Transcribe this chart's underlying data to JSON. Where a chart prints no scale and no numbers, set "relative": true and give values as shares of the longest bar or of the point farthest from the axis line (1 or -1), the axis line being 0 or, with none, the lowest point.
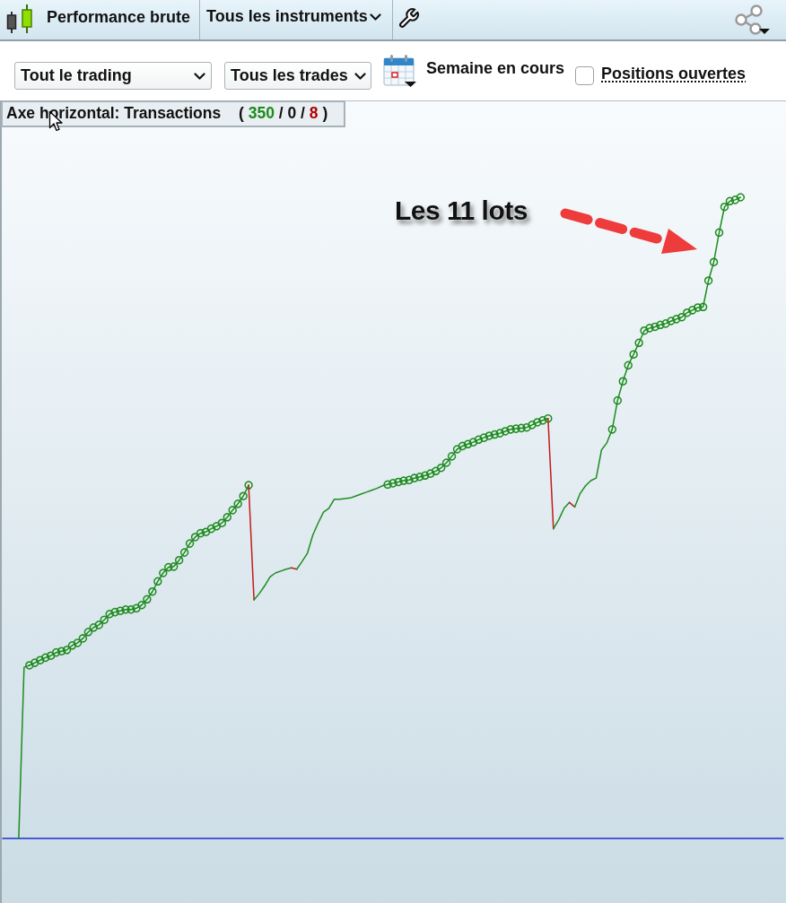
{
  "chart_data": {
    "type": "line",
    "title": "Performance brute",
    "annotations": [
      "Tous les instruments",
      "Tout le trading",
      "Tous les trades",
      "Semaine en cours",
      "Positions ouvertes",
      "Axe horizontal: Transactions",
      "( 350 / 0 / 8 )",
      "Les 11 lots"
    ],
    "relative": true,
    "marker": "none",
    "categories": [
      null,
      null,
      null,
      null,
      null,
      null,
      null,
      null,
      null,
      null,
      null,
      null,
      null,
      null,
      null,
      null,
      null,
      null,
      null,
      null,
      null,
      null,
      null,
      null,
      null,
      null,
      null,
      null,
      null,
      null,
      null,
      null,
      null,
      null,
      null,
      null,
      null,
      null,
      null,
      null,
      null,
      null,
      null,
      null,
      null,
      null,
      null,
      null,
      null,
      null,
      null,
      null,
      null,
      null,
      null,
      null,
      null,
      null,
      null,
      null,
      null,
      null,
      null,
      null,
      null,
      null,
      null,
      null,
      null,
      null,
      null,
      null,
      null,
      null,
      null,
      null,
      null,
      null,
      null,
      null,
      null,
      null,
      null,
      null,
      null,
      null,
      null,
      null,
      null,
      null,
      null,
      null,
      null,
      null,
      null,
      null,
      null,
      null,
      null,
      null,
      null,
      null,
      null,
      null,
      null,
      null,
      null,
      null,
      null,
      null,
      null,
      null,
      null,
      null,
      null,
      null,
      null,
      null,
      null,
      null,
      null,
      null,
      null,
      null,
      null,
      null,
      null,
      null,
      null,
      null,
      null,
      null,
      null,
      null,
      null,
      null,
      null,
      null,
      null,
      null,
      null,
      null,
      null,
      null,
      null,
      null,
      null
    ],
    "series": [
      {
        "color": "#1e8c1e",
        "values": [
          null,
          null,
          null,
          0,
          0.267,
          0.27,
          null,
          null,
          null,
          null,
          null,
          null,
          null,
          null,
          null,
          null,
          null,
          null,
          null,
          null,
          null,
          null,
          null,
          null,
          null,
          null,
          null,
          null,
          null,
          null,
          null,
          null,
          null,
          null,
          null,
          null,
          null,
          null,
          null,
          null,
          null,
          null,
          null,
          null,
          null,
          null,
          null,
          null,
          null,
          null,
          null,
          null,
          null,
          null,
          null,
          null,
          null,
          null,
          null,
          null,
          null,
          null,
          null,
          null,
          null,
          null,
          null,
          null,
          null,
          null,
          null,
          null,
          null,
          null,
          null,
          null,
          null,
          null,
          null,
          null,
          null,
          null,
          null,
          null,
          null,
          null,
          null,
          null,
          null,
          null,
          null,
          null,
          null,
          null,
          null,
          null,
          null,
          null,
          null,
          null,
          null,
          null,
          null,
          null,
          null,
          null,
          null,
          null,
          null,
          null,
          null,
          null,
          null,
          null,
          null,
          null,
          null,
          null,
          null,
          null,
          null,
          null,
          null,
          null,
          null,
          null,
          null,
          null,
          null,
          null,
          null,
          null,
          null,
          null,
          null,
          null,
          null,
          null,
          null,
          null,
          null,
          null,
          null,
          null,
          null,
          null,
          null
        ]
      },
      {
        "color": "#1e8c1e",
        "marker": "circle",
        "values": [
          null,
          null,
          null,
          null,
          null,
          0.27,
          0.274,
          0.278,
          0.282,
          0.285,
          0.29,
          0.292,
          0.294,
          0.301,
          0.305,
          0.312,
          0.322,
          0.329,
          0.333,
          0.341,
          0.35,
          0.353,
          0.355,
          0.357,
          0.357,
          0.359,
          0.364,
          0.373,
          0.385,
          0.401,
          0.414,
          0.423,
          0.424,
          0.434,
          0.446,
          0.46,
          0.47,
          0.476,
          0.478,
          0.483,
          0.487,
          0.492,
          0.501,
          0.512,
          0.522,
          0.534,
          0.551,
          null,
          null,
          null,
          null,
          null,
          null,
          null,
          null,
          null,
          null,
          null,
          null,
          null,
          null,
          null,
          null,
          null,
          null,
          null,
          null,
          null,
          null,
          null,
          null,
          null,
          null,
          null,
          null,
          null,
          null,
          null,
          null,
          null,
          null,
          null,
          null,
          null,
          null,
          null,
          null,
          null,
          null,
          null,
          null,
          null,
          null,
          null,
          null,
          null,
          null,
          null,
          null,
          null,
          null,
          null,
          null,
          null,
          null,
          null,
          null,
          null,
          null,
          null,
          null,
          null,
          null,
          null,
          null,
          null,
          null,
          null,
          null,
          null,
          null,
          null,
          null,
          null,
          null,
          null,
          null,
          null,
          null,
          null,
          null,
          null,
          null,
          null,
          null,
          null,
          null,
          null,
          null,
          null,
          null,
          null,
          null,
          null,
          null,
          null,
          null
        ]
      },
      {
        "color": "#c41a1a",
        "values": [
          null,
          null,
          null,
          null,
          null,
          null,
          null,
          null,
          null,
          null,
          null,
          null,
          null,
          null,
          null,
          null,
          null,
          null,
          null,
          null,
          null,
          null,
          null,
          null,
          null,
          null,
          null,
          null,
          null,
          null,
          null,
          null,
          null,
          null,
          null,
          null,
          null,
          null,
          null,
          null,
          null,
          null,
          null,
          null,
          null,
          null,
          0.551,
          0.372,
          null,
          null,
          null,
          null,
          null,
          null,
          null,
          null,
          null,
          null,
          null,
          null,
          null,
          null,
          null,
          null,
          null,
          null,
          null,
          null,
          null,
          null,
          null,
          null,
          null,
          null,
          null,
          null,
          null,
          null,
          null,
          null,
          null,
          null,
          null,
          null,
          null,
          null,
          null,
          null,
          null,
          null,
          null,
          null,
          null,
          null,
          null,
          null,
          null,
          null,
          null,
          null,
          null,
          null,
          null,
          null,
          null,
          null,
          null,
          null,
          null,
          null,
          null,
          null,
          null,
          null,
          null,
          null,
          null,
          null,
          null,
          null,
          null,
          null,
          null,
          null,
          null,
          null,
          null,
          null,
          null,
          null,
          null,
          null,
          null,
          null,
          null,
          null,
          null,
          null,
          null,
          null,
          null,
          null,
          null,
          null,
          null,
          null,
          null
        ]
      },
      {
        "color": "#1e8c1e",
        "values": [
          null,
          null,
          null,
          null,
          null,
          null,
          null,
          null,
          null,
          null,
          null,
          null,
          null,
          null,
          null,
          null,
          null,
          null,
          null,
          null,
          null,
          null,
          null,
          null,
          null,
          null,
          null,
          null,
          null,
          null,
          null,
          null,
          null,
          null,
          null,
          null,
          null,
          null,
          null,
          null,
          null,
          null,
          null,
          null,
          null,
          null,
          null,
          0.372,
          0.382,
          0.394,
          0.408,
          0.414,
          0.417,
          0.42,
          0.422,
          null,
          null,
          null,
          null,
          null,
          null,
          null,
          null,
          null,
          null,
          null,
          null,
          null,
          null,
          null,
          null,
          null,
          null,
          null,
          null,
          null,
          null,
          null,
          null,
          null,
          null,
          null,
          null,
          null,
          null,
          null,
          null,
          null,
          null,
          null,
          null,
          null,
          null,
          null,
          null,
          null,
          null,
          null,
          null,
          null,
          null,
          null,
          null,
          null,
          null,
          null,
          null,
          null,
          null,
          null,
          null,
          null,
          null,
          null,
          null,
          null,
          null,
          null,
          null,
          null,
          null,
          null,
          null,
          null,
          null,
          null,
          null,
          null,
          null,
          null,
          null,
          null,
          null,
          null,
          null,
          null,
          null,
          null,
          null,
          null,
          null,
          null,
          null,
          null,
          null,
          null,
          null
        ]
      },
      {
        "color": "#c41a1a",
        "values": [
          null,
          null,
          null,
          null,
          null,
          null,
          null,
          null,
          null,
          null,
          null,
          null,
          null,
          null,
          null,
          null,
          null,
          null,
          null,
          null,
          null,
          null,
          null,
          null,
          null,
          null,
          null,
          null,
          null,
          null,
          null,
          null,
          null,
          null,
          null,
          null,
          null,
          null,
          null,
          null,
          null,
          null,
          null,
          null,
          null,
          null,
          null,
          null,
          null,
          null,
          null,
          null,
          null,
          null,
          0.422,
          0.42,
          null,
          null,
          null,
          null,
          null,
          null,
          null,
          null,
          null,
          null,
          null,
          null,
          null,
          null,
          null,
          null,
          null,
          null,
          null,
          null,
          null,
          null,
          null,
          null,
          null,
          null,
          null,
          null,
          null,
          null,
          null,
          null,
          null,
          null,
          null,
          null,
          null,
          null,
          null,
          null,
          null,
          null,
          null,
          null,
          null,
          null,
          null,
          null,
          null,
          null,
          null,
          null,
          null,
          null,
          null,
          null,
          null,
          null,
          null,
          null,
          null,
          null,
          null,
          null,
          null,
          null,
          null,
          null,
          null,
          null,
          null,
          null,
          null,
          null,
          null,
          null,
          null,
          null,
          null,
          null,
          null,
          null,
          null,
          null,
          null,
          null,
          null,
          null,
          null,
          null,
          null
        ]
      },
      {
        "color": "#1e8c1e",
        "values": [
          null,
          null,
          null,
          null,
          null,
          null,
          null,
          null,
          null,
          null,
          null,
          null,
          null,
          null,
          null,
          null,
          null,
          null,
          null,
          null,
          null,
          null,
          null,
          null,
          null,
          null,
          null,
          null,
          null,
          null,
          null,
          null,
          null,
          null,
          null,
          null,
          null,
          null,
          null,
          null,
          null,
          null,
          null,
          null,
          null,
          null,
          null,
          null,
          null,
          null,
          null,
          null,
          null,
          null,
          null,
          0.42,
          0.432,
          0.445,
          0.473,
          0.492,
          0.509,
          0.515,
          0.529,
          0.529,
          0.53,
          0.531,
          0.534,
          0.537,
          0.54,
          0.543,
          0.546,
          0.55,
          0.552,
          null,
          null,
          null,
          null,
          null,
          null,
          null,
          null,
          null,
          null,
          null,
          null,
          null,
          null,
          null,
          null,
          null,
          null,
          null,
          null,
          null,
          null,
          null,
          null,
          null,
          null,
          null,
          null,
          null,
          null,
          null,
          null,
          null,
          null,
          null,
          null,
          null,
          null,
          null,
          null,
          null,
          null,
          null,
          null,
          null,
          null,
          null,
          null,
          null,
          null,
          null,
          null,
          null,
          null,
          null,
          null,
          null,
          null,
          null,
          null,
          null,
          null,
          null,
          null,
          null,
          null,
          null,
          null,
          null,
          null,
          null,
          null,
          null,
          null
        ]
      },
      {
        "color": "#1e8c1e",
        "marker": "circle",
        "values": [
          null,
          null,
          null,
          null,
          null,
          null,
          null,
          null,
          null,
          null,
          null,
          null,
          null,
          null,
          null,
          null,
          null,
          null,
          null,
          null,
          null,
          null,
          null,
          null,
          null,
          null,
          null,
          null,
          null,
          null,
          null,
          null,
          null,
          null,
          null,
          null,
          null,
          null,
          null,
          null,
          null,
          null,
          null,
          null,
          null,
          null,
          null,
          null,
          null,
          null,
          null,
          null,
          null,
          null,
          null,
          null,
          null,
          null,
          null,
          null,
          null,
          null,
          null,
          null,
          null,
          null,
          null,
          null,
          null,
          null,
          null,
          null,
          0.552,
          0.554,
          0.556,
          0.558,
          0.559,
          0.562,
          0.564,
          0.566,
          0.569,
          0.573,
          0.578,
          0.586,
          0.596,
          0.607,
          0.612,
          0.615,
          0.618,
          0.622,
          0.625,
          0.628,
          0.63,
          0.632,
          0.635,
          0.638,
          0.639,
          0.64,
          0.641,
          0.645,
          0.649,
          0.652,
          0.655,
          null,
          null,
          null,
          null,
          null,
          null,
          null,
          null,
          null,
          null,
          null,
          null,
          null,
          null,
          null,
          null,
          null,
          null,
          null,
          null,
          null,
          null,
          null,
          null,
          null,
          null,
          null,
          null,
          null,
          null,
          null,
          null,
          null,
          null,
          null,
          null,
          null,
          null,
          null,
          null,
          null,
          null,
          null,
          null
        ]
      },
      {
        "color": "#c41a1a",
        "values": [
          null,
          null,
          null,
          null,
          null,
          null,
          null,
          null,
          null,
          null,
          null,
          null,
          null,
          null,
          null,
          null,
          null,
          null,
          null,
          null,
          null,
          null,
          null,
          null,
          null,
          null,
          null,
          null,
          null,
          null,
          null,
          null,
          null,
          null,
          null,
          null,
          null,
          null,
          null,
          null,
          null,
          null,
          null,
          null,
          null,
          null,
          null,
          null,
          null,
          null,
          null,
          null,
          null,
          null,
          null,
          null,
          null,
          null,
          null,
          null,
          null,
          null,
          null,
          null,
          null,
          null,
          null,
          null,
          null,
          null,
          null,
          null,
          null,
          null,
          null,
          null,
          null,
          null,
          null,
          null,
          null,
          null,
          null,
          null,
          null,
          null,
          null,
          null,
          null,
          null,
          null,
          null,
          null,
          null,
          null,
          null,
          null,
          null,
          null,
          null,
          null,
          null,
          0.655,
          0.483,
          null,
          null,
          null,
          null,
          null,
          null,
          null,
          null,
          null,
          null,
          null,
          null,
          null,
          null,
          null,
          null,
          null,
          null,
          null,
          null,
          null,
          null,
          null,
          null,
          null,
          null,
          null,
          null,
          null,
          null,
          null,
          null,
          null,
          null,
          null,
          null,
          null,
          null,
          null,
          null,
          null,
          null,
          null
        ]
      },
      {
        "color": "#1e8c1e",
        "values": [
          null,
          null,
          null,
          null,
          null,
          null,
          null,
          null,
          null,
          null,
          null,
          null,
          null,
          null,
          null,
          null,
          null,
          null,
          null,
          null,
          null,
          null,
          null,
          null,
          null,
          null,
          null,
          null,
          null,
          null,
          null,
          null,
          null,
          null,
          null,
          null,
          null,
          null,
          null,
          null,
          null,
          null,
          null,
          null,
          null,
          null,
          null,
          null,
          null,
          null,
          null,
          null,
          null,
          null,
          null,
          null,
          null,
          null,
          null,
          null,
          null,
          null,
          null,
          null,
          null,
          null,
          null,
          null,
          null,
          null,
          null,
          null,
          null,
          null,
          null,
          null,
          null,
          null,
          null,
          null,
          null,
          null,
          null,
          null,
          null,
          null,
          null,
          null,
          null,
          null,
          null,
          null,
          null,
          null,
          null,
          null,
          null,
          null,
          null,
          null,
          null,
          null,
          null,
          0.483,
          0.497,
          0.515,
          0.524,
          null,
          null,
          null,
          null,
          null,
          null,
          null,
          null,
          null,
          null,
          null,
          null,
          null,
          null,
          null,
          null,
          null,
          null,
          null,
          null,
          null,
          null,
          null,
          null,
          null,
          null,
          null,
          null,
          null,
          null,
          null,
          null,
          null,
          null,
          null,
          null,
          null,
          null,
          null,
          null
        ]
      },
      {
        "color": "#c41a1a",
        "values": [
          null,
          null,
          null,
          null,
          null,
          null,
          null,
          null,
          null,
          null,
          null,
          null,
          null,
          null,
          null,
          null,
          null,
          null,
          null,
          null,
          null,
          null,
          null,
          null,
          null,
          null,
          null,
          null,
          null,
          null,
          null,
          null,
          null,
          null,
          null,
          null,
          null,
          null,
          null,
          null,
          null,
          null,
          null,
          null,
          null,
          null,
          null,
          null,
          null,
          null,
          null,
          null,
          null,
          null,
          null,
          null,
          null,
          null,
          null,
          null,
          null,
          null,
          null,
          null,
          null,
          null,
          null,
          null,
          null,
          null,
          null,
          null,
          null,
          null,
          null,
          null,
          null,
          null,
          null,
          null,
          null,
          null,
          null,
          null,
          null,
          null,
          null,
          null,
          null,
          null,
          null,
          null,
          null,
          null,
          null,
          null,
          null,
          null,
          null,
          null,
          null,
          null,
          null,
          null,
          null,
          null,
          0.524,
          0.517,
          null,
          null,
          null,
          null,
          null,
          null,
          null,
          null,
          null,
          null,
          null,
          null,
          null,
          null,
          null,
          null,
          null,
          null,
          null,
          null,
          null,
          null,
          null,
          null,
          null,
          null,
          null,
          null,
          null,
          null,
          null,
          null,
          null,
          null,
          null,
          null,
          null,
          null,
          null
        ]
      },
      {
        "color": "#1e8c1e",
        "values": [
          null,
          null,
          null,
          null,
          null,
          null,
          null,
          null,
          null,
          null,
          null,
          null,
          null,
          null,
          null,
          null,
          null,
          null,
          null,
          null,
          null,
          null,
          null,
          null,
          null,
          null,
          null,
          null,
          null,
          null,
          null,
          null,
          null,
          null,
          null,
          null,
          null,
          null,
          null,
          null,
          null,
          null,
          null,
          null,
          null,
          null,
          null,
          null,
          null,
          null,
          null,
          null,
          null,
          null,
          null,
          null,
          null,
          null,
          null,
          null,
          null,
          null,
          null,
          null,
          null,
          null,
          null,
          null,
          null,
          null,
          null,
          null,
          null,
          null,
          null,
          null,
          null,
          null,
          null,
          null,
          null,
          null,
          null,
          null,
          null,
          null,
          null,
          null,
          null,
          null,
          null,
          null,
          null,
          null,
          null,
          null,
          null,
          null,
          null,
          null,
          null,
          null,
          null,
          null,
          null,
          null,
          null,
          0.517,
          0.538,
          0.55,
          0.558,
          0.562,
          0.606,
          0.617,
          0.638,
          null,
          null,
          null,
          null,
          null,
          null,
          null,
          null,
          null,
          null,
          null,
          null,
          null,
          null,
          null,
          null,
          null,
          null,
          null,
          null,
          null,
          null,
          null,
          null,
          null,
          null,
          null,
          null,
          null,
          null,
          null,
          null
        ]
      },
      {
        "color": "#1e8c1e",
        "marker": "circle",
        "values": [
          null,
          null,
          null,
          null,
          null,
          null,
          null,
          null,
          null,
          null,
          null,
          null,
          null,
          null,
          null,
          null,
          null,
          null,
          null,
          null,
          null,
          null,
          null,
          null,
          null,
          null,
          null,
          null,
          null,
          null,
          null,
          null,
          null,
          null,
          null,
          null,
          null,
          null,
          null,
          null,
          null,
          null,
          null,
          null,
          null,
          null,
          null,
          null,
          null,
          null,
          null,
          null,
          null,
          null,
          null,
          null,
          null,
          null,
          null,
          null,
          null,
          null,
          null,
          null,
          null,
          null,
          null,
          null,
          null,
          null,
          null,
          null,
          null,
          null,
          null,
          null,
          null,
          null,
          null,
          null,
          null,
          null,
          null,
          null,
          null,
          null,
          null,
          null,
          null,
          null,
          null,
          null,
          null,
          null,
          null,
          null,
          null,
          null,
          null,
          null,
          null,
          null,
          null,
          null,
          null,
          null,
          null,
          null,
          null,
          null,
          null,
          null,
          null,
          null,
          0.638,
          0.683,
          0.713,
          0.738,
          0.755,
          0.773,
          0.792,
          0.796,
          0.798,
          0.801,
          0.803,
          0.807,
          0.81,
          0.813,
          0.82,
          0.824,
          0.828,
          0.829,
          0.87,
          0.899,
          0.945,
          0.985,
          0.994,
          0.996,
          1,
          null,
          null,
          null,
          null,
          null,
          null,
          null,
          null
        ]
      }
    ]
  }
}
